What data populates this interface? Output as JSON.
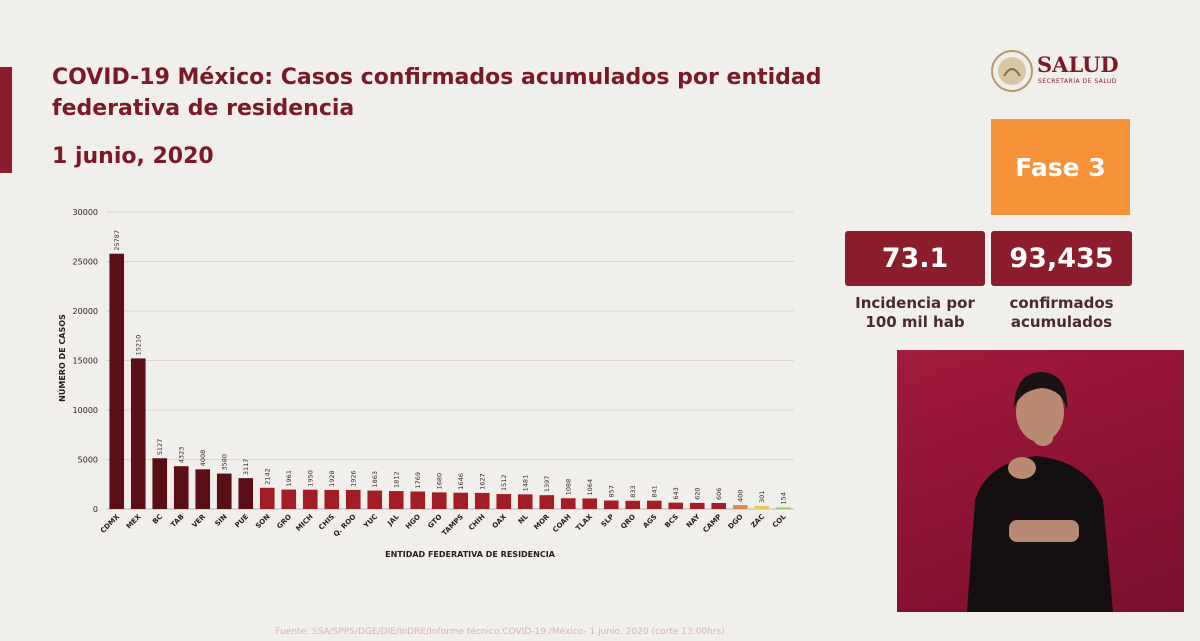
{
  "header": {
    "title": "COVID-19 México: Casos confirmados acumulados por entidad federativa de residencia",
    "date": "1 junio, 2020"
  },
  "logo": {
    "text": "SALUD",
    "subtext": "SECRETARÍA DE SALUD"
  },
  "phase": {
    "label": "Fase 3",
    "color": "#f7923a"
  },
  "stats": {
    "incidence_value": "73.1",
    "incidence_label_1": "Incidencia por",
    "incidence_label_2": "100 mil hab",
    "confirmed_value": "93,435",
    "confirmed_label_1": "confirmados",
    "confirmed_label_2": "acumulados"
  },
  "footer": {
    "source": "Fuente: SSA/SPPS/DGE/DIE/InDRE/Informe técnico.COVID-19 /México- 1 junio, 2020 (corte 13:00hrs)"
  },
  "colors": {
    "dark_red": "#5a0f16",
    "red": "#a21d26",
    "orange": "#e4874a",
    "yellow": "#e6c85c",
    "green": "#9cc57a"
  },
  "chart_data": {
    "type": "bar",
    "xlabel": "ENTIDAD FEDERATIVA DE RESIDENCIA",
    "ylabel": "NÚMERO DE CASOS",
    "ylim": [
      0,
      30000
    ],
    "yticks": [
      0,
      5000,
      10000,
      15000,
      20000,
      25000,
      30000
    ],
    "grid": true,
    "categories": [
      "CDMX",
      "MEX",
      "BC",
      "TAB",
      "VER",
      "SIN",
      "PUE",
      "SON",
      "GRO",
      "MICH",
      "CHIS",
      "Q. ROO",
      "YUC",
      "JAL",
      "HGO",
      "GTO",
      "TAMPS",
      "CHIH",
      "OAX",
      "NL",
      "MOR",
      "COAH",
      "TLAX",
      "SLP",
      "QRO",
      "AGS",
      "BCS",
      "NAY",
      "CAMP",
      "DGO",
      "ZAC",
      "COL"
    ],
    "values": [
      25787,
      15210,
      5127,
      4323,
      4008,
      3580,
      3117,
      2142,
      1961,
      1950,
      1928,
      1926,
      1863,
      1812,
      1769,
      1680,
      1646,
      1627,
      1512,
      1481,
      1397,
      1088,
      1064,
      857,
      833,
      841,
      643,
      620,
      606,
      400,
      301,
      154
    ],
    "bar_colors": [
      "#5a0f16",
      "#5a0f16",
      "#5a0f16",
      "#5a0f16",
      "#5a0f16",
      "#5a0f16",
      "#5a0f16",
      "#a21d26",
      "#a21d26",
      "#a21d26",
      "#a21d26",
      "#a21d26",
      "#a21d26",
      "#a21d26",
      "#a21d26",
      "#a21d26",
      "#a21d26",
      "#a21d26",
      "#a21d26",
      "#a21d26",
      "#a21d26",
      "#a21d26",
      "#a21d26",
      "#a21d26",
      "#a21d26",
      "#a21d26",
      "#a21d26",
      "#a21d26",
      "#a21d26",
      "#e4874a",
      "#e6c85c",
      "#9cc57a"
    ]
  }
}
